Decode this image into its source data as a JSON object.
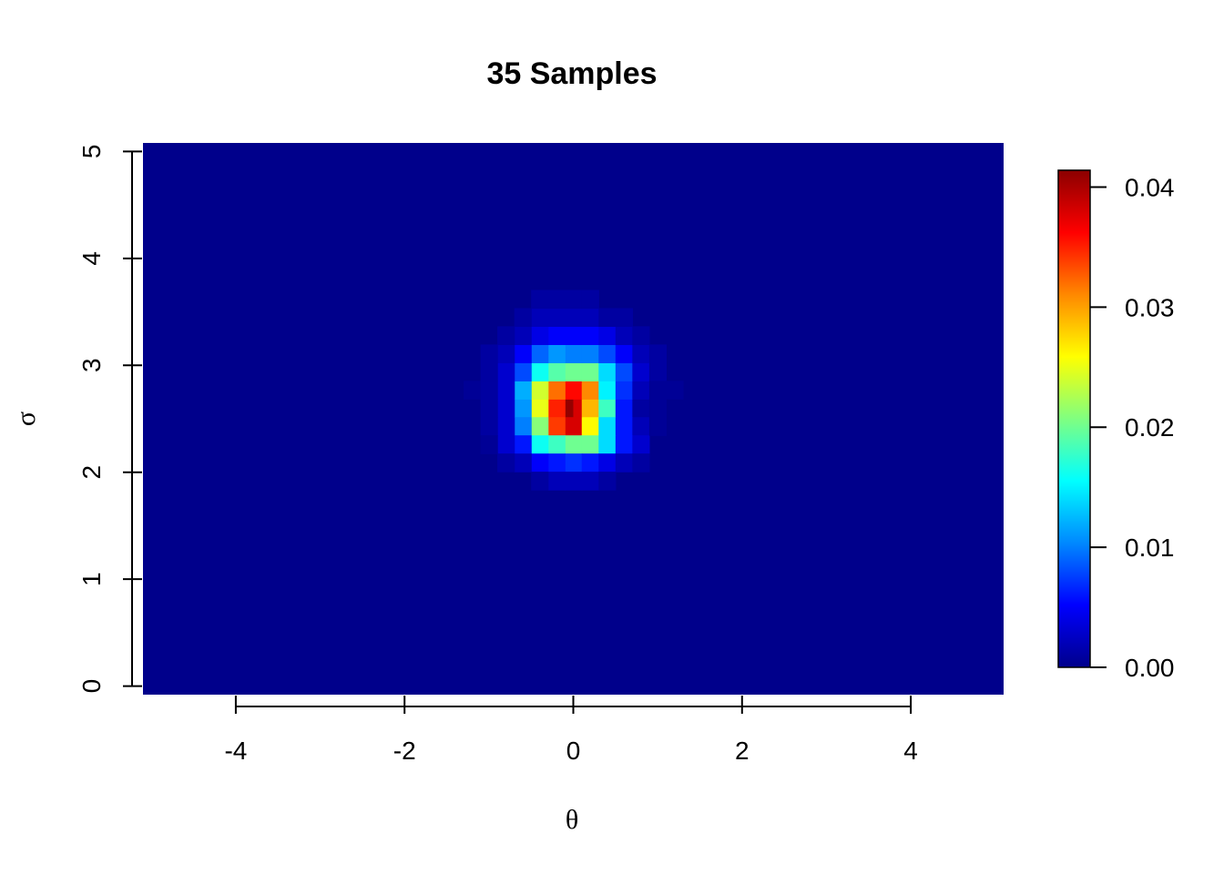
{
  "chart_data": {
    "type": "heatmap",
    "title": "35  Samples",
    "xlabel": "θ",
    "ylabel": "σ",
    "x_ticks": [
      "-4",
      "-2",
      "0",
      "2",
      "4"
    ],
    "y_ticks": [
      "0",
      "1",
      "2",
      "3",
      "4",
      "5"
    ],
    "xlim": [
      -5.1,
      5.1
    ],
    "ylim": [
      -0.08,
      5.08
    ],
    "colorbar": {
      "ticks": [
        "0.00",
        "0.01",
        "0.02",
        "0.03",
        "0.04"
      ],
      "range": [
        0,
        0.0414
      ],
      "colors": [
        "#00008B",
        "#0000FF",
        "#0088FF",
        "#00FFFF",
        "#80FF80",
        "#FFFF00",
        "#FF8800",
        "#FF0000",
        "#8B0000"
      ]
    },
    "background_value": 0,
    "cell_size": {
      "dx": 0.2,
      "dy": 0.17
    },
    "cells": [
      {
        "x": 0.0,
        "y": 2.6,
        "v": 0.041
      },
      {
        "x": 0.1,
        "y": 2.6,
        "v": 0.038
      },
      {
        "x": -0.2,
        "y": 2.6,
        "v": 0.035
      },
      {
        "x": 0.2,
        "y": 2.6,
        "v": 0.029
      },
      {
        "x": -0.4,
        "y": 2.6,
        "v": 0.025
      },
      {
        "x": 0.4,
        "y": 2.6,
        "v": 0.018
      },
      {
        "x": -0.6,
        "y": 2.6,
        "v": 0.011
      },
      {
        "x": 0.6,
        "y": 2.6,
        "v": 0.006
      },
      {
        "x": -0.8,
        "y": 2.6,
        "v": 0.003
      },
      {
        "x": 0.8,
        "y": 2.6,
        "v": 0.001
      },
      {
        "x": 0.0,
        "y": 2.77,
        "v": 0.036
      },
      {
        "x": 0.2,
        "y": 2.77,
        "v": 0.031
      },
      {
        "x": -0.2,
        "y": 2.77,
        "v": 0.032
      },
      {
        "x": 0.4,
        "y": 2.77,
        "v": 0.015
      },
      {
        "x": -0.4,
        "y": 2.77,
        "v": 0.024
      },
      {
        "x": 0.6,
        "y": 2.77,
        "v": 0.007
      },
      {
        "x": -0.6,
        "y": 2.77,
        "v": 0.012
      },
      {
        "x": 0.8,
        "y": 2.77,
        "v": 0.002
      },
      {
        "x": -0.8,
        "y": 2.77,
        "v": 0.003
      },
      {
        "x": 0.0,
        "y": 2.43,
        "v": 0.038
      },
      {
        "x": 0.2,
        "y": 2.43,
        "v": 0.026
      },
      {
        "x": -0.2,
        "y": 2.43,
        "v": 0.034
      },
      {
        "x": 0.4,
        "y": 2.43,
        "v": 0.014
      },
      {
        "x": -0.4,
        "y": 2.43,
        "v": 0.021
      },
      {
        "x": 0.6,
        "y": 2.43,
        "v": 0.006
      },
      {
        "x": -0.6,
        "y": 2.43,
        "v": 0.01
      },
      {
        "x": 0.8,
        "y": 2.43,
        "v": 0.002
      },
      {
        "x": -0.8,
        "y": 2.43,
        "v": 0.003
      },
      {
        "x": 0.0,
        "y": 2.94,
        "v": 0.02
      },
      {
        "x": 0.2,
        "y": 2.94,
        "v": 0.02
      },
      {
        "x": -0.2,
        "y": 2.94,
        "v": 0.019
      },
      {
        "x": 0.4,
        "y": 2.94,
        "v": 0.014
      },
      {
        "x": -0.4,
        "y": 2.94,
        "v": 0.016
      },
      {
        "x": 0.6,
        "y": 2.94,
        "v": 0.008
      },
      {
        "x": -0.6,
        "y": 2.94,
        "v": 0.008
      },
      {
        "x": 0.8,
        "y": 2.94,
        "v": 0.003
      },
      {
        "x": -0.8,
        "y": 2.94,
        "v": 0.003
      },
      {
        "x": 1.0,
        "y": 2.94,
        "v": 0.001
      },
      {
        "x": -1.0,
        "y": 2.94,
        "v": 0.001
      },
      {
        "x": 0.0,
        "y": 2.26,
        "v": 0.02
      },
      {
        "x": 0.2,
        "y": 2.26,
        "v": 0.02
      },
      {
        "x": -0.2,
        "y": 2.26,
        "v": 0.018
      },
      {
        "x": 0.4,
        "y": 2.26,
        "v": 0.014
      },
      {
        "x": -0.4,
        "y": 2.26,
        "v": 0.016
      },
      {
        "x": 0.6,
        "y": 2.26,
        "v": 0.006
      },
      {
        "x": -0.6,
        "y": 2.26,
        "v": 0.006
      },
      {
        "x": 0.8,
        "y": 2.26,
        "v": 0.003
      },
      {
        "x": -0.8,
        "y": 2.26,
        "v": 0.003
      },
      {
        "x": 0.0,
        "y": 3.11,
        "v": 0.01
      },
      {
        "x": 0.2,
        "y": 3.11,
        "v": 0.01
      },
      {
        "x": -0.2,
        "y": 3.11,
        "v": 0.011
      },
      {
        "x": 0.4,
        "y": 3.11,
        "v": 0.008
      },
      {
        "x": -0.4,
        "y": 3.11,
        "v": 0.009
      },
      {
        "x": 0.6,
        "y": 3.11,
        "v": 0.005
      },
      {
        "x": -0.6,
        "y": 3.11,
        "v": 0.005
      },
      {
        "x": 0.8,
        "y": 3.11,
        "v": 0.002
      },
      {
        "x": -0.8,
        "y": 3.11,
        "v": 0.002
      },
      {
        "x": 1.0,
        "y": 3.11,
        "v": 0.001
      },
      {
        "x": -1.0,
        "y": 3.11,
        "v": 0.001
      },
      {
        "x": 0.0,
        "y": 2.09,
        "v": 0.007
      },
      {
        "x": 0.2,
        "y": 2.09,
        "v": 0.006
      },
      {
        "x": -0.2,
        "y": 2.09,
        "v": 0.006
      },
      {
        "x": 0.4,
        "y": 2.09,
        "v": 0.004
      },
      {
        "x": -0.4,
        "y": 2.09,
        "v": 0.005
      },
      {
        "x": 0.6,
        "y": 2.09,
        "v": 0.002
      },
      {
        "x": -0.6,
        "y": 2.09,
        "v": 0.002
      },
      {
        "x": 0.8,
        "y": 2.09,
        "v": 0.001
      },
      {
        "x": -0.8,
        "y": 2.09,
        "v": 0.001
      },
      {
        "x": 0.0,
        "y": 3.28,
        "v": 0.005
      },
      {
        "x": 0.2,
        "y": 3.28,
        "v": 0.005
      },
      {
        "x": -0.2,
        "y": 3.28,
        "v": 0.005
      },
      {
        "x": 0.4,
        "y": 3.28,
        "v": 0.004
      },
      {
        "x": -0.4,
        "y": 3.28,
        "v": 0.004
      },
      {
        "x": 0.6,
        "y": 3.28,
        "v": 0.002
      },
      {
        "x": -0.6,
        "y": 3.28,
        "v": 0.002
      },
      {
        "x": 0.8,
        "y": 3.28,
        "v": 0.001
      },
      {
        "x": -0.8,
        "y": 3.28,
        "v": 0.001
      },
      {
        "x": 0.0,
        "y": 1.92,
        "v": 0.002
      },
      {
        "x": 0.2,
        "y": 1.92,
        "v": 0.002
      },
      {
        "x": -0.2,
        "y": 1.92,
        "v": 0.002
      },
      {
        "x": 0.4,
        "y": 1.92,
        "v": 0.001
      },
      {
        "x": -0.4,
        "y": 1.92,
        "v": 0.001
      },
      {
        "x": 0.0,
        "y": 3.45,
        "v": 0.002
      },
      {
        "x": 0.2,
        "y": 3.45,
        "v": 0.002
      },
      {
        "x": -0.2,
        "y": 3.45,
        "v": 0.002
      },
      {
        "x": 0.4,
        "y": 3.45,
        "v": 0.001
      },
      {
        "x": -0.4,
        "y": 3.45,
        "v": 0.002
      },
      {
        "x": -0.6,
        "y": 3.45,
        "v": 0.001
      },
      {
        "x": 0.6,
        "y": 3.45,
        "v": 0.001
      },
      {
        "x": 0.0,
        "y": 3.62,
        "v": 0.001
      },
      {
        "x": 0.2,
        "y": 3.62,
        "v": 0.001
      },
      {
        "x": -0.2,
        "y": 3.62,
        "v": 0.001
      },
      {
        "x": -0.4,
        "y": 3.62,
        "v": 0.001
      },
      {
        "x": -1.2,
        "y": 2.77,
        "v": 0.0005
      },
      {
        "x": 1.2,
        "y": 2.77,
        "v": 0.0005
      },
      {
        "x": 1.0,
        "y": 2.6,
        "v": 0.0005
      },
      {
        "x": -1.0,
        "y": 2.6,
        "v": 0.001
      },
      {
        "x": 1.0,
        "y": 2.77,
        "v": 0.0005
      },
      {
        "x": -1.0,
        "y": 2.77,
        "v": 0.001
      },
      {
        "x": 1.0,
        "y": 2.43,
        "v": 0.0005
      },
      {
        "x": -1.0,
        "y": 2.43,
        "v": 0.001
      },
      {
        "x": -1.0,
        "y": 2.26,
        "v": 0.0005
      }
    ]
  }
}
